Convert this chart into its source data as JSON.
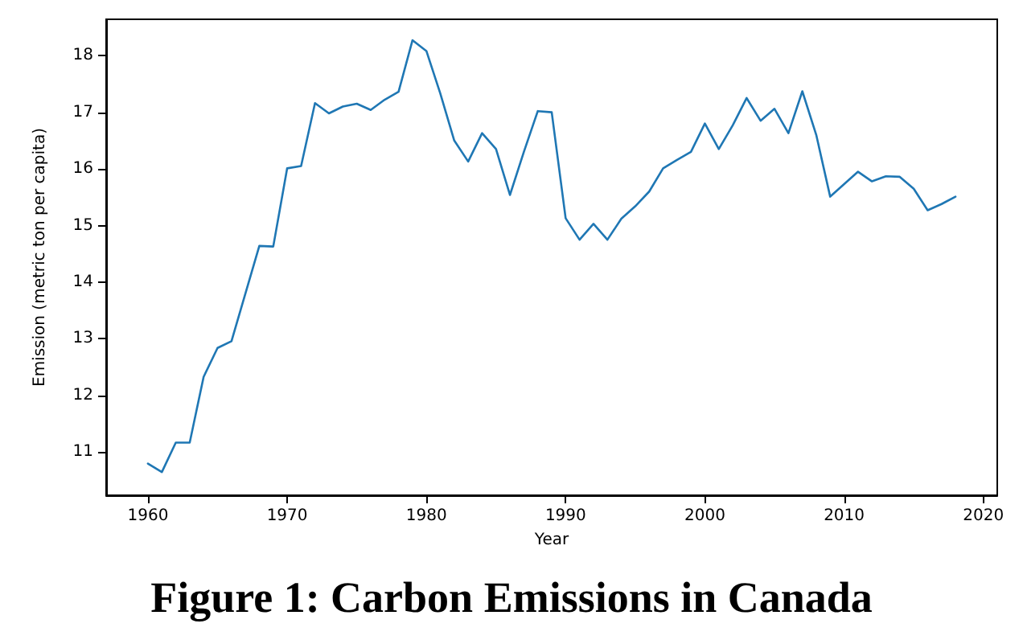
{
  "chart_data": {
    "type": "line",
    "title": "Figure 1: Carbon Emissions in Canada",
    "xlabel": "Year",
    "ylabel": "Emission (metric ton per capita)",
    "x": [
      1960,
      1961,
      1962,
      1963,
      1964,
      1965,
      1966,
      1967,
      1968,
      1969,
      1970,
      1971,
      1972,
      1973,
      1974,
      1975,
      1976,
      1977,
      1978,
      1979,
      1980,
      1981,
      1982,
      1983,
      1984,
      1985,
      1986,
      1987,
      1988,
      1989,
      1990,
      1991,
      1992,
      1993,
      1994,
      1995,
      1996,
      1997,
      1998,
      1999,
      2000,
      2001,
      2002,
      2003,
      2004,
      2005,
      2006,
      2007,
      2008,
      2009,
      2010,
      2011,
      2012,
      2013,
      2014,
      2015,
      2016,
      2017,
      2018
    ],
    "series": [
      {
        "color": "#1f77b4",
        "values": [
          10.8,
          10.65,
          11.17,
          11.17,
          12.33,
          12.84,
          12.96,
          13.8,
          14.64,
          14.63,
          16.01,
          16.05,
          17.16,
          16.98,
          17.1,
          17.15,
          17.04,
          17.22,
          17.36,
          18.27,
          18.08,
          17.33,
          16.5,
          16.13,
          16.63,
          16.35,
          15.54,
          16.3,
          17.02,
          17.0,
          15.13,
          14.75,
          15.03,
          14.75,
          15.12,
          15.34,
          15.6,
          16.01,
          16.16,
          16.3,
          16.8,
          16.35,
          16.77,
          17.25,
          16.85,
          17.06,
          16.63,
          17.37,
          16.6,
          15.51,
          15.73,
          15.95,
          15.78,
          15.87,
          15.86,
          15.65,
          15.27,
          15.38,
          15.51
        ]
      }
    ],
    "xlim": [
      1957,
      2021
    ],
    "xticks": [
      1960,
      1970,
      1980,
      1990,
      2000,
      2010,
      2020
    ],
    "ylim": [
      10.24,
      18.64
    ],
    "yticks": [
      11,
      12,
      13,
      14,
      15,
      16,
      17,
      18
    ],
    "grid": false,
    "marker": "none",
    "line_style": "solid"
  }
}
